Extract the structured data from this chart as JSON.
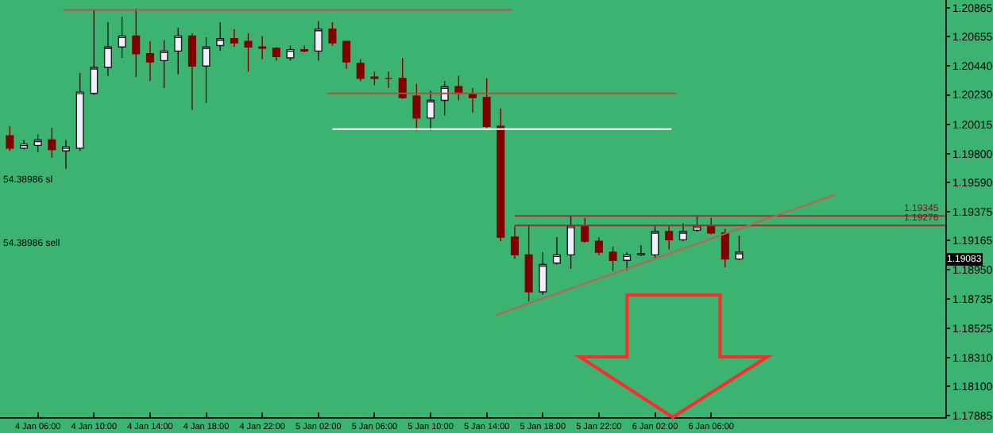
{
  "chart_data": {
    "type": "candlestick",
    "x": [
      "2023-01-04T04:00",
      "2023-01-04T05:00",
      "2023-01-04T06:00",
      "2023-01-04T07:00",
      "2023-01-04T08:00",
      "2023-01-04T09:00",
      "2023-01-04T10:00",
      "2023-01-04T11:00",
      "2023-01-04T12:00",
      "2023-01-04T13:00",
      "2023-01-04T14:00",
      "2023-01-04T15:00",
      "2023-01-04T16:00",
      "2023-01-04T17:00",
      "2023-01-04T18:00",
      "2023-01-04T19:00",
      "2023-01-04T20:00",
      "2023-01-04T21:00",
      "2023-01-04T22:00",
      "2023-01-04T23:00",
      "2023-01-05T00:00",
      "2023-01-05T01:00",
      "2023-01-05T02:00",
      "2023-01-05T03:00",
      "2023-01-05T04:00",
      "2023-01-05T05:00",
      "2023-01-05T06:00",
      "2023-01-05T07:00",
      "2023-01-05T08:00",
      "2023-01-05T09:00",
      "2023-01-05T10:00",
      "2023-01-05T11:00",
      "2023-01-05T12:00",
      "2023-01-05T13:00",
      "2023-01-05T14:00",
      "2023-01-05T15:00",
      "2023-01-05T16:00",
      "2023-01-05T17:00",
      "2023-01-05T18:00",
      "2023-01-05T19:00",
      "2023-01-05T20:00",
      "2023-01-05T21:00",
      "2023-01-05T22:00",
      "2023-01-05T23:00",
      "2023-01-06T00:00",
      "2023-01-06T01:00",
      "2023-01-06T02:00",
      "2023-01-06T03:00",
      "2023-01-06T04:00",
      "2023-01-06T05:00",
      "2023-01-06T06:00",
      "2023-01-06T07:00",
      "2023-01-06T08:00"
    ],
    "ohlc": [
      [
        1.1993,
        1.2,
        1.1982,
        1.1984
      ],
      [
        1.1984,
        1.199,
        1.1983,
        1.1987
      ],
      [
        1.1986,
        1.1994,
        1.1981,
        1.199
      ],
      [
        1.199,
        1.1999,
        1.1977,
        1.1983
      ],
      [
        1.1982,
        1.199,
        1.1969,
        1.1985
      ],
      [
        1.1984,
        1.2039,
        1.1982,
        1.2025
      ],
      [
        1.2024,
        1.2085,
        1.2023,
        1.2043
      ],
      [
        1.2043,
        1.2076,
        1.2037,
        1.2058
      ],
      [
        1.2058,
        1.208,
        1.205,
        1.2066
      ],
      [
        1.2066,
        1.2086,
        1.2036,
        1.2053
      ],
      [
        1.2053,
        1.2062,
        1.2033,
        1.2047
      ],
      [
        1.2048,
        1.2063,
        1.2028,
        1.2055
      ],
      [
        1.2055,
        1.2072,
        1.2038,
        1.2066
      ],
      [
        1.2066,
        1.2068,
        1.2012,
        1.2044
      ],
      [
        1.2044,
        1.2065,
        1.2017,
        1.2058
      ],
      [
        1.2059,
        1.2076,
        1.2055,
        1.2064
      ],
      [
        1.2064,
        1.2071,
        1.2058,
        1.2061
      ],
      [
        1.2062,
        1.2068,
        1.204,
        1.2058
      ],
      [
        1.2058,
        1.2066,
        1.2049,
        1.2057
      ],
      [
        1.2057,
        1.2058,
        1.2048,
        1.2051
      ],
      [
        1.205,
        1.2059,
        1.2048,
        1.2056
      ],
      [
        1.2056,
        1.2059,
        1.2054,
        1.2055
      ],
      [
        1.2055,
        1.2077,
        1.2048,
        1.2071
      ],
      [
        1.2071,
        1.2076,
        1.2059,
        1.2061
      ],
      [
        1.2062,
        1.2062,
        1.2042,
        1.2047
      ],
      [
        1.2046,
        1.2049,
        1.2033,
        1.2035
      ],
      [
        1.2036,
        1.204,
        1.203,
        1.2035
      ],
      [
        1.2035,
        1.204,
        1.2028,
        1.2035
      ],
      [
        1.2035,
        1.205,
        1.202,
        1.2021
      ],
      [
        1.2022,
        1.2031,
        1.1997,
        1.2006
      ],
      [
        1.2006,
        1.2026,
        1.1997,
        1.2019
      ],
      [
        1.2019,
        1.2033,
        1.2008,
        1.2029
      ],
      [
        1.2029,
        1.2037,
        1.2019,
        1.2024
      ],
      [
        1.2024,
        1.2028,
        1.201,
        1.2021
      ],
      [
        1.2021,
        1.2035,
        1.1998,
        1.2
      ],
      [
        1.2,
        1.2013,
        1.1916,
        1.1919
      ],
      [
        1.1919,
        1.1927,
        1.1903,
        1.1906
      ],
      [
        1.1906,
        1.1927,
        1.1872,
        1.1879
      ],
      [
        1.1879,
        1.1908,
        1.1877,
        1.1899
      ],
      [
        1.19,
        1.1919,
        1.1899,
        1.1906
      ],
      [
        1.1906,
        1.1934,
        1.1896,
        1.1927
      ],
      [
        1.1927,
        1.1933,
        1.1915,
        1.1916
      ],
      [
        1.1916,
        1.1919,
        1.1906,
        1.1908
      ],
      [
        1.1908,
        1.1912,
        1.1894,
        1.1902
      ],
      [
        1.1902,
        1.1908,
        1.1895,
        1.1906
      ],
      [
        1.1906,
        1.1913,
        1.1905,
        1.1907
      ],
      [
        1.1906,
        1.1927,
        1.1904,
        1.1923
      ],
      [
        1.1923,
        1.1927,
        1.191,
        1.1917
      ],
      [
        1.1917,
        1.1929,
        1.1916,
        1.1923
      ],
      [
        1.1924,
        1.1935,
        1.1923,
        1.1927
      ],
      [
        1.1927,
        1.1933,
        1.1921,
        1.1922
      ],
      [
        1.1922,
        1.1925,
        1.1897,
        1.1903
      ],
      [
        1.1903,
        1.192,
        1.1902,
        1.1908
      ]
    ],
    "colors": [
      "#800000",
      "#f0f0ff",
      "#f0f0ff",
      "#800000",
      "#f0f0ff",
      "#f0f0ff",
      "#f0f0ff",
      "#f0f0ff",
      "#f0f0ff",
      "#800000",
      "#800000",
      "#f0f0ff",
      "#f0f0ff",
      "#800000",
      "#f0f0ff",
      "#f0f0ff",
      "#800000",
      "#800000",
      "#800000",
      "#800000",
      "#f0f0ff",
      "#800000",
      "#f0f0ff",
      "#800000",
      "#800000",
      "#800000",
      "#800000",
      "#800000",
      "#800000",
      "#800000",
      "#f0f0ff",
      "#f0f0ff",
      "#800000",
      "#800000",
      "#800000",
      "#800000",
      "#800000",
      "#800000",
      "#f0f0ff",
      "#f0f0ff",
      "#f0f0ff",
      "#800000",
      "#800000",
      "#800000",
      "#f0f0ff",
      "#f0f0ff",
      "#f0f0ff",
      "#800000",
      "#f0f0ff",
      "#f0f0ff",
      "#800000",
      "#800000",
      "#f0f0ff"
    ],
    "series": [
      {
        "type": "line",
        "color": "#c0504d",
        "x": [
          "2023-01-04T07:48",
          "2023-01-05T15:48"
        ],
        "values": [
          1.2085,
          1.2085
        ]
      },
      {
        "type": "line",
        "color": "#b05040",
        "x": [
          "2023-01-05T02:40",
          "2023-01-06T03:30"
        ],
        "values": [
          1.2024,
          1.2024
        ]
      },
      {
        "type": "line",
        "color": "#ffffff",
        "x": [
          "2023-01-05T03:00",
          "2023-01-06T03:10"
        ],
        "values": [
          1.1998,
          1.1998
        ]
      },
      {
        "type": "line",
        "color": "#a03030",
        "x": [
          "2023-01-05T16:00",
          "2023-01-06T22:40"
        ],
        "values": [
          1.19345,
          1.19345
        ]
      },
      {
        "type": "line",
        "color": "#a03030",
        "x": [
          "2023-01-05T16:00",
          "2023-01-06T22:40"
        ],
        "values": [
          1.19276,
          1.19276
        ]
      },
      {
        "type": "line",
        "color": "#c06050",
        "x": [
          "2023-01-05T14:40",
          "2023-01-06T14:50"
        ],
        "values": [
          1.1862,
          1.195
        ]
      }
    ],
    "annotations": [
      {
        "text": "1.19345",
        "y": 1.19345
      },
      {
        "text": "1.19276",
        "y": 1.19276
      },
      "1.19083",
      "54.38986 sl",
      "54.38986 sell"
    ],
    "xlim": [
      "2023-01-04T03:18",
      "2023-01-06T22:42"
    ],
    "xticks": [
      {
        "value": "2023-01-04T06:00",
        "label": "4 Jan 06:00"
      },
      {
        "value": "2023-01-04T10:00",
        "label": "4 Jan 10:00"
      },
      {
        "value": "2023-01-04T14:00",
        "label": "4 Jan 14:00"
      },
      {
        "value": "2023-01-04T18:00",
        "label": "4 Jan 18:00"
      },
      {
        "value": "2023-01-04T22:00",
        "label": "4 Jan 22:00"
      },
      {
        "value": "2023-01-05T02:00",
        "label": "5 Jan 02:00"
      },
      {
        "value": "2023-01-05T06:00",
        "label": "5 Jan 06:00"
      },
      {
        "value": "2023-01-05T10:00",
        "label": "5 Jan 10:00"
      },
      {
        "value": "2023-01-05T14:00",
        "label": "5 Jan 14:00"
      },
      {
        "value": "2023-01-05T18:00",
        "label": "5 Jan 18:00"
      },
      {
        "value": "2023-01-05T22:00",
        "label": "5 Jan 22:00"
      },
      {
        "value": "2023-01-06T02:00",
        "label": "6 Jan 02:00"
      },
      {
        "value": "2023-01-06T06:00",
        "label": "6 Jan 06:00"
      }
    ],
    "ylim": [
      1.17874,
      1.20923
    ],
    "yticks": [
      1.20865,
      1.20655,
      {
        "value": 1.2044,
        "label": "1.20440"
      },
      {
        "value": 1.2023,
        "label": "1.20230"
      },
      1.20015,
      {
        "value": 1.198,
        "label": "1.19800"
      },
      {
        "value": 1.1959,
        "label": "1.19590"
      },
      1.19375,
      1.19165,
      {
        "value": 1.1895,
        "label": "1.18950"
      },
      1.18735,
      1.18525,
      {
        "value": 1.1831,
        "label": "1.18310"
      },
      {
        "value": 1.181,
        "label": "1.18100"
      },
      1.17885
    ]
  }
}
